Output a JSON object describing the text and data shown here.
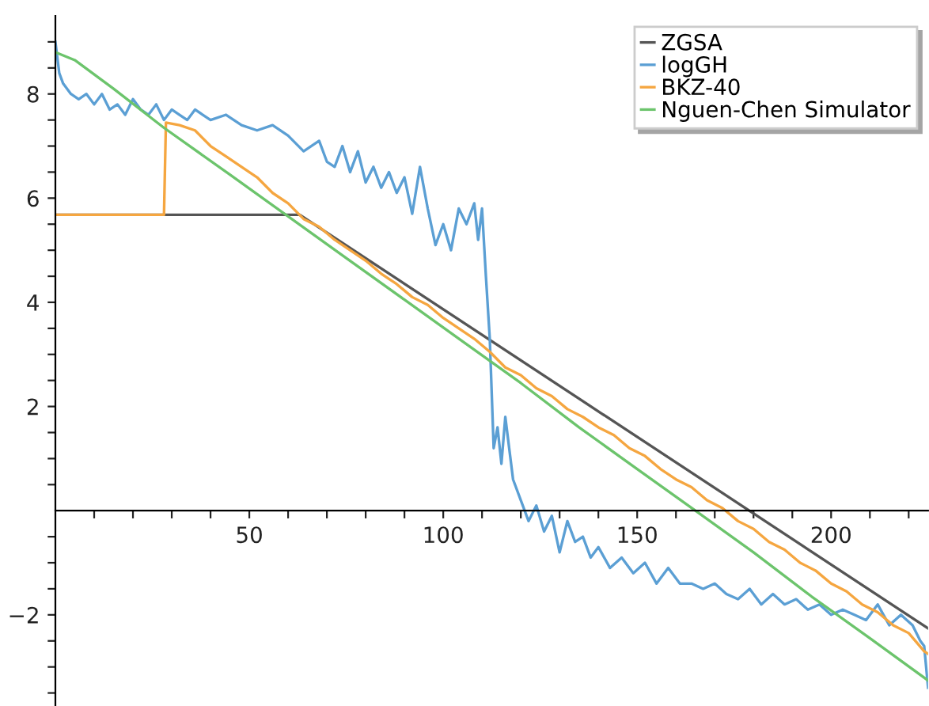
{
  "chart_data": {
    "type": "line",
    "xlim": [
      0,
      225
    ],
    "ylim": [
      -3.75,
      9.5
    ],
    "xticks": [
      {
        "value": 10,
        "label": null
      },
      {
        "value": 20,
        "label": null
      },
      {
        "value": 30,
        "label": null
      },
      {
        "value": 40,
        "label": null
      },
      50,
      {
        "value": 60,
        "label": null
      },
      {
        "value": 70,
        "label": null
      },
      {
        "value": 80,
        "label": null
      },
      {
        "value": 90,
        "label": null
      },
      100,
      {
        "value": 110,
        "label": null
      },
      {
        "value": 120,
        "label": null
      },
      {
        "value": 130,
        "label": null
      },
      {
        "value": 140,
        "label": null
      },
      150,
      {
        "value": 160,
        "label": null
      },
      {
        "value": 170,
        "label": null
      },
      {
        "value": 180,
        "label": null
      },
      {
        "value": 190,
        "label": null
      },
      200,
      {
        "value": 210,
        "label": null
      },
      {
        "value": 220,
        "label": null
      }
    ],
    "yticks": [
      {
        "value": -3.5,
        "label": null
      },
      {
        "value": -3,
        "label": null
      },
      {
        "value": -2.5,
        "label": null
      },
      {
        "value": -2,
        "label": "−2"
      },
      {
        "value": -1.5,
        "label": null
      },
      {
        "value": -1,
        "label": null
      },
      {
        "value": -0.5,
        "label": null
      },
      {
        "value": 0.5,
        "label": null
      },
      {
        "value": 1,
        "label": null
      },
      {
        "value": 1.5,
        "label": null
      },
      2,
      {
        "value": 2.5,
        "label": null
      },
      {
        "value": 3,
        "label": null
      },
      {
        "value": 3.5,
        "label": null
      },
      4,
      {
        "value": 4.5,
        "label": null
      },
      {
        "value": 5,
        "label": null
      },
      {
        "value": 5.5,
        "label": null
      },
      6,
      {
        "value": 6.5,
        "label": null
      },
      {
        "value": 7,
        "label": null
      },
      {
        "value": 7.5,
        "label": null
      },
      8,
      {
        "value": 8.5,
        "label": null
      },
      {
        "value": 9,
        "label": null
      }
    ],
    "grid": false,
    "legend": "top right",
    "marker": "none",
    "line_style": "solid",
    "series": [
      {
        "name": "ZGSA",
        "color": "#555555",
        "x": [
          0,
          63,
          225
        ],
        "values": [
          5.68,
          5.68,
          -2.26
        ]
      },
      {
        "name": "logGH",
        "color": "#5b9fd4",
        "x": [
          0,
          1,
          2,
          4,
          6,
          8,
          10,
          12,
          14,
          16,
          18,
          20,
          22,
          24,
          26,
          28,
          30,
          32,
          34,
          36,
          38,
          40,
          44,
          48,
          52,
          56,
          60,
          64,
          68,
          70,
          72,
          74,
          76,
          78,
          80,
          82,
          84,
          86,
          88,
          90,
          92,
          94,
          96,
          98,
          100,
          102,
          104,
          106,
          108,
          109,
          110,
          111,
          112,
          113,
          114,
          115,
          116,
          118,
          120,
          122,
          124,
          126,
          128,
          130,
          132,
          134,
          136,
          138,
          140,
          143,
          146,
          149,
          152,
          155,
          158,
          161,
          164,
          167,
          170,
          173,
          176,
          179,
          182,
          185,
          188,
          191,
          194,
          197,
          200,
          203,
          206,
          209,
          212,
          215,
          218,
          221,
          223,
          224,
          225
        ],
        "values": [
          9.0,
          8.4,
          8.2,
          8.0,
          7.9,
          8.0,
          7.8,
          8.0,
          7.7,
          7.8,
          7.6,
          7.9,
          7.7,
          7.6,
          7.8,
          7.5,
          7.7,
          7.6,
          7.5,
          7.7,
          7.6,
          7.5,
          7.6,
          7.4,
          7.3,
          7.4,
          7.2,
          6.9,
          7.1,
          6.7,
          6.6,
          7.0,
          6.5,
          6.9,
          6.3,
          6.6,
          6.2,
          6.5,
          6.1,
          6.4,
          5.7,
          6.6,
          5.8,
          5.1,
          5.5,
          5.0,
          5.8,
          5.5,
          5.9,
          5.2,
          5.8,
          4.5,
          3.3,
          1.2,
          1.6,
          0.9,
          1.8,
          0.6,
          0.2,
          -0.2,
          0.1,
          -0.4,
          -0.1,
          -0.8,
          -0.2,
          -0.6,
          -0.5,
          -0.9,
          -0.7,
          -1.1,
          -0.9,
          -1.2,
          -1.0,
          -1.4,
          -1.1,
          -1.4,
          -1.4,
          -1.5,
          -1.4,
          -1.6,
          -1.7,
          -1.5,
          -1.8,
          -1.6,
          -1.8,
          -1.7,
          -1.9,
          -1.8,
          -2.0,
          -1.9,
          -2.0,
          -2.1,
          -1.8,
          -2.2,
          -2.0,
          -2.2,
          -2.5,
          -2.6,
          -3.4
        ]
      },
      {
        "name": "BKZ-40",
        "color": "#f5a640",
        "x": [
          0,
          28,
          28.5,
          32,
          36,
          40,
          44,
          48,
          52,
          56,
          60,
          64,
          68,
          72,
          76,
          80,
          84,
          88,
          92,
          96,
          100,
          104,
          108,
          112,
          116,
          120,
          124,
          128,
          132,
          136,
          140,
          144,
          148,
          152,
          156,
          160,
          164,
          168,
          172,
          176,
          180,
          184,
          188,
          192,
          196,
          200,
          204,
          208,
          212,
          216,
          220,
          224,
          225
        ],
        "values": [
          5.68,
          5.68,
          7.45,
          7.4,
          7.3,
          7.0,
          6.8,
          6.6,
          6.4,
          6.1,
          5.9,
          5.6,
          5.45,
          5.2,
          5.0,
          4.8,
          4.55,
          4.35,
          4.1,
          3.95,
          3.7,
          3.5,
          3.3,
          3.05,
          2.75,
          2.6,
          2.35,
          2.2,
          1.95,
          1.8,
          1.6,
          1.45,
          1.2,
          1.05,
          0.8,
          0.6,
          0.45,
          0.2,
          0.05,
          -0.2,
          -0.35,
          -0.6,
          -0.75,
          -1.0,
          -1.15,
          -1.4,
          -1.55,
          -1.8,
          -1.95,
          -2.2,
          -2.35,
          -2.7,
          -2.75
        ]
      },
      {
        "name": "Nguen-Chen Simulator",
        "color": "#6cc46c",
        "x": [
          0,
          5,
          15,
          28,
          45,
          60,
          75,
          90,
          105,
          120,
          135,
          150,
          165,
          180,
          195,
          210,
          225
        ],
        "values": [
          8.8,
          8.65,
          8.1,
          7.35,
          6.45,
          5.65,
          4.85,
          4.05,
          3.25,
          2.45,
          1.6,
          0.8,
          0.0,
          -0.8,
          -1.65,
          -2.45,
          -3.26
        ]
      }
    ]
  }
}
